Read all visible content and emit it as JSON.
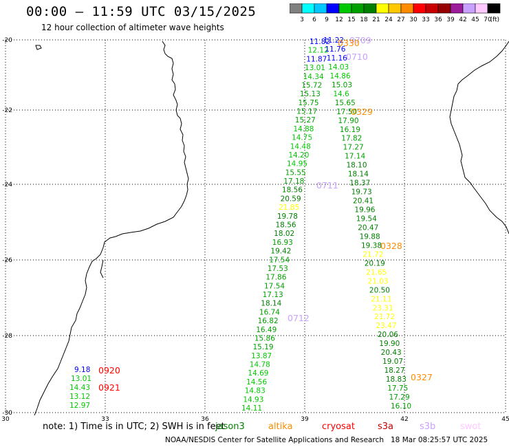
{
  "header": {
    "title": "00:00 – 11:59 UTC 03/15/2025",
    "subtitle": "12 hour collection of altimeter wave heights"
  },
  "colorbar": {
    "unit": "(ft)",
    "ticks": [
      "3",
      "6",
      "9",
      "12",
      "15",
      "18",
      "21",
      "24",
      "27",
      "30",
      "33",
      "36",
      "39",
      "42",
      "45",
      "70"
    ],
    "colors": [
      "#808080",
      "#00ffff",
      "#00c8ff",
      "#0000ff",
      "#00c800",
      "#00a000",
      "#008000",
      "#ffff00",
      "#ffc800",
      "#ff8c00",
      "#ff0000",
      "#c80000",
      "#960000",
      "#9b1b9b",
      "#c8a0ff",
      "#ffc8ff",
      "#000000"
    ]
  },
  "map": {
    "lon_ticks": [
      "30",
      "33",
      "36",
      "39",
      "42",
      "45"
    ],
    "lat_ticks": [
      "-20",
      "-22",
      "-24",
      "-26",
      "-28",
      "-30"
    ],
    "colors": {
      "jason": "#008000",
      "altika": "#ff8c00",
      "cryosat": "#ff0000",
      "s3a": "#c80000",
      "s3b": "#c8a0ff",
      "swot": "#ffc8ff"
    },
    "time_labels": [
      {
        "text": "0709",
        "color": "#c8a0ff"
      },
      {
        "text": "0330",
        "color": "#ff8c00"
      },
      {
        "text": "0710",
        "color": "#c8a0ff"
      },
      {
        "text": "0329",
        "color": "#ff8c00"
      },
      {
        "text": "0711",
        "color": "#c8a0ff"
      },
      {
        "text": "0328",
        "color": "#ff8c00"
      },
      {
        "text": "0712",
        "color": "#c8a0ff"
      },
      {
        "text": "0327",
        "color": "#ff8c00"
      },
      {
        "text": "0920",
        "color": "#ff0000"
      },
      {
        "text": "0921",
        "color": "#ff0000"
      }
    ],
    "track_left": [
      {
        "v": "11.82",
        "c": "#0000ff"
      },
      {
        "v": "12.12",
        "c": "#00c800"
      },
      {
        "v": "11.87",
        "c": "#0000ff"
      },
      {
        "v": "13.01",
        "c": "#00c800"
      },
      {
        "v": "14.34",
        "c": "#00c800"
      },
      {
        "v": "15.72",
        "c": "#00a000"
      },
      {
        "v": "15.13",
        "c": "#00a000"
      },
      {
        "v": "15.75",
        "c": "#00a000"
      },
      {
        "v": "15.17",
        "c": "#00a000"
      },
      {
        "v": "15.27",
        "c": "#00a000"
      },
      {
        "v": "14.88",
        "c": "#00c800"
      },
      {
        "v": "14.75",
        "c": "#00c800"
      },
      {
        "v": "14.48",
        "c": "#00c800"
      },
      {
        "v": "14.20",
        "c": "#00c800"
      },
      {
        "v": "14.95",
        "c": "#00c800"
      },
      {
        "v": "15.55",
        "c": "#00a000"
      },
      {
        "v": "17.18",
        "c": "#00a000"
      },
      {
        "v": "18.56",
        "c": "#008000"
      },
      {
        "v": "20.59",
        "c": "#008000"
      },
      {
        "v": "21.85",
        "c": "#ffff00"
      },
      {
        "v": "19.78",
        "c": "#008000"
      },
      {
        "v": "18.56",
        "c": "#008000"
      },
      {
        "v": "18.02",
        "c": "#008000"
      },
      {
        "v": "16.93",
        "c": "#00a000"
      },
      {
        "v": "19.42",
        "c": "#008000"
      },
      {
        "v": "17.54",
        "c": "#00a000"
      },
      {
        "v": "17.53",
        "c": "#00a000"
      },
      {
        "v": "17.86",
        "c": "#00a000"
      },
      {
        "v": "17.54",
        "c": "#00a000"
      },
      {
        "v": "17.13",
        "c": "#00a000"
      },
      {
        "v": "18.14",
        "c": "#008000"
      },
      {
        "v": "16.74",
        "c": "#00a000"
      },
      {
        "v": "16.82",
        "c": "#00a000"
      },
      {
        "v": "16.49",
        "c": "#00a000"
      },
      {
        "v": "15.86",
        "c": "#00a000"
      },
      {
        "v": "15.19",
        "c": "#00a000"
      },
      {
        "v": "13.87",
        "c": "#00c800"
      },
      {
        "v": "14.78",
        "c": "#00c800"
      },
      {
        "v": "14.69",
        "c": "#00c800"
      },
      {
        "v": "14.56",
        "c": "#00c800"
      },
      {
        "v": "14.83",
        "c": "#00c800"
      },
      {
        "v": "14.93",
        "c": "#00c800"
      },
      {
        "v": "14.11",
        "c": "#00c800"
      }
    ],
    "track_right": [
      {
        "v": "11.22",
        "c": "#0000ff"
      },
      {
        "v": "11.76",
        "c": "#0000ff"
      },
      {
        "v": "11.16",
        "c": "#0000ff"
      },
      {
        "v": "14.03",
        "c": "#00c800"
      },
      {
        "v": "14.86",
        "c": "#00c800"
      },
      {
        "v": "15.03",
        "c": "#00a000"
      },
      {
        "v": "14.6",
        "c": "#00c800"
      },
      {
        "v": "15.65",
        "c": "#00a000"
      },
      {
        "v": "17.50",
        "c": "#00a000"
      },
      {
        "v": "17.90",
        "c": "#00a000"
      },
      {
        "v": "16.19",
        "c": "#00a000"
      },
      {
        "v": "17.82",
        "c": "#00a000"
      },
      {
        "v": "17.27",
        "c": "#00a000"
      },
      {
        "v": "17.14",
        "c": "#00a000"
      },
      {
        "v": "18.10",
        "c": "#008000"
      },
      {
        "v": "18.14",
        "c": "#008000"
      },
      {
        "v": "18.37",
        "c": "#008000"
      },
      {
        "v": "19.73",
        "c": "#008000"
      },
      {
        "v": "20.41",
        "c": "#008000"
      },
      {
        "v": "19.96",
        "c": "#008000"
      },
      {
        "v": "19.54",
        "c": "#008000"
      },
      {
        "v": "20.47",
        "c": "#008000"
      },
      {
        "v": "19.88",
        "c": "#008000"
      },
      {
        "v": "19.38",
        "c": "#008000"
      },
      {
        "v": "21.72",
        "c": "#ffff00"
      },
      {
        "v": "20.19",
        "c": "#008000"
      },
      {
        "v": "21.65",
        "c": "#ffff00"
      },
      {
        "v": "21.03",
        "c": "#ffff00"
      },
      {
        "v": "20.50",
        "c": "#008000"
      },
      {
        "v": "21.11",
        "c": "#ffff00"
      },
      {
        "v": "23.31",
        "c": "#ffff00"
      },
      {
        "v": "21.72",
        "c": "#ffff00"
      },
      {
        "v": "23.47",
        "c": "#ffff00"
      },
      {
        "v": "20.06",
        "c": "#008000"
      },
      {
        "v": "19.90",
        "c": "#008000"
      },
      {
        "v": "20.43",
        "c": "#008000"
      },
      {
        "v": "19.07",
        "c": "#008000"
      },
      {
        "v": "18.27",
        "c": "#008000"
      },
      {
        "v": "18.83",
        "c": "#008000"
      },
      {
        "v": "17.75",
        "c": "#00a000"
      },
      {
        "v": "17.29",
        "c": "#00a000"
      },
      {
        "v": "16.10",
        "c": "#00a000"
      }
    ],
    "coast_values": [
      {
        "v": "9.18",
        "c": "#0000ff"
      },
      {
        "v": "13.01",
        "c": "#00c800"
      },
      {
        "v": "14.43",
        "c": "#00c800"
      },
      {
        "v": "13.12",
        "c": "#00c800"
      },
      {
        "v": "12.97",
        "c": "#00c800"
      }
    ]
  },
  "footer": {
    "note": "note: 1) Time is in UTC; 2) SWH is in feet",
    "legend": {
      "jason": "jason3",
      "altika": "altika",
      "cryosat": "cryosat",
      "s3a": "s3a",
      "s3b": "s3b",
      "swot": "swot"
    },
    "credit": "NOAA/NESDIS Center for Satellite Applications and Research",
    "timestamp": "18 Mar 08:25:57 UTC 2025"
  }
}
